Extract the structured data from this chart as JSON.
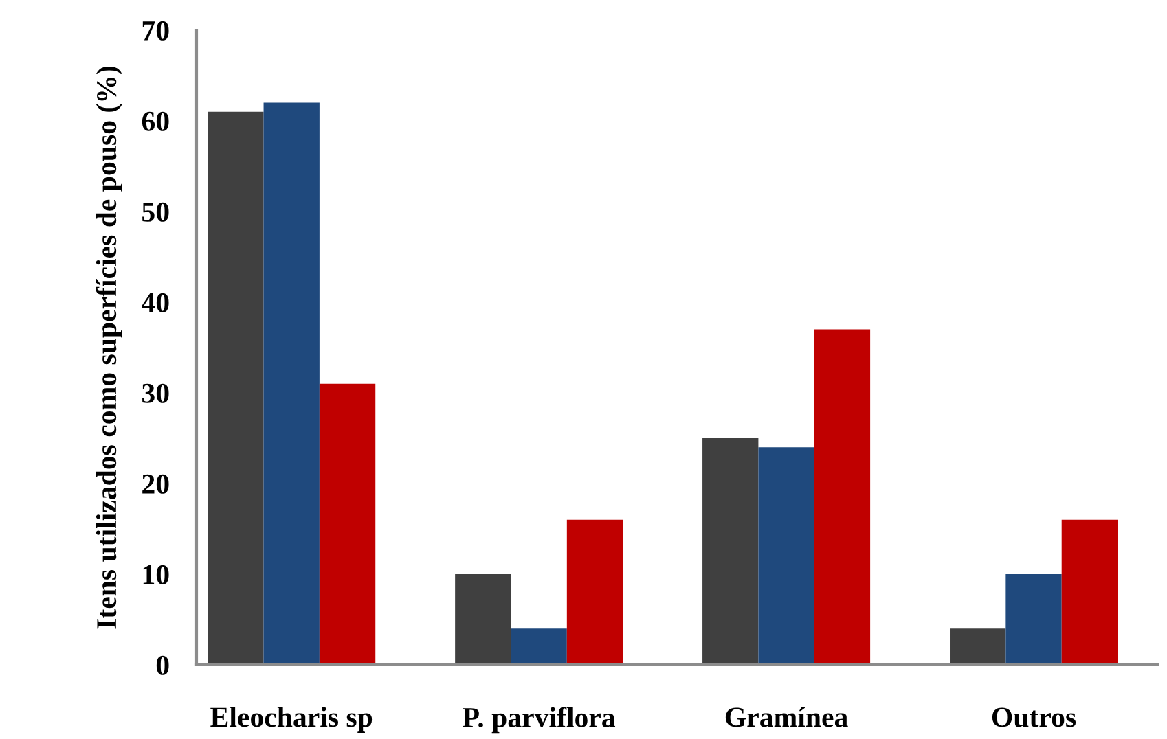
{
  "chart_data": {
    "type": "bar",
    "ylabel": "Itens utilizados como superfícies de pouso (%)",
    "categories": [
      "Eleocharis sp",
      "P. parviflora",
      "Gramínea",
      "Outros"
    ],
    "series": [
      {
        "color": "#404040",
        "values": [
          61,
          10,
          25,
          4
        ]
      },
      {
        "color": "#1f497d",
        "values": [
          62,
          4,
          24,
          10
        ]
      },
      {
        "color": "#c00000",
        "values": [
          31,
          16,
          37,
          16
        ]
      }
    ],
    "ylim": [
      0,
      70
    ],
    "yticks": [
      0,
      10,
      20,
      30,
      40,
      50,
      60,
      70
    ],
    "grid": false,
    "legend": false
  }
}
